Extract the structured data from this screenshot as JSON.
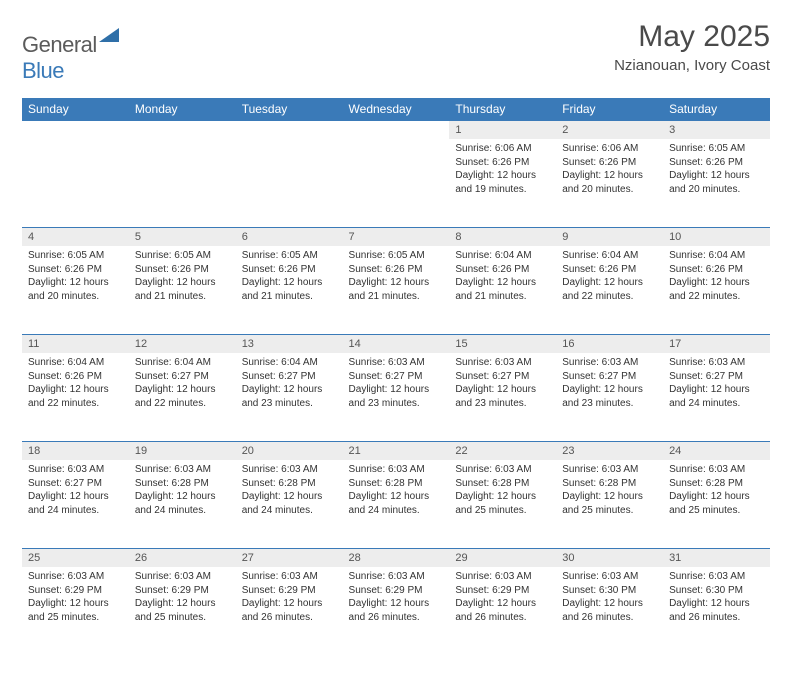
{
  "logo": {
    "general": "General",
    "blue": "Blue"
  },
  "title": "May 2025",
  "subtitle": "Nzianouan, Ivory Coast",
  "colors": {
    "header_bg": "#3a7ab8",
    "header_text": "#ffffff",
    "daynum_bg": "#ededed",
    "text": "#333333",
    "logo_gray": "#5b5b5b",
    "logo_blue": "#3a7ab8"
  },
  "weekdays": [
    "Sunday",
    "Monday",
    "Tuesday",
    "Wednesday",
    "Thursday",
    "Friday",
    "Saturday"
  ],
  "weeks": [
    [
      null,
      null,
      null,
      null,
      {
        "n": "1",
        "sr": "6:06 AM",
        "ss": "6:26 PM",
        "dl": "12 hours and 19 minutes."
      },
      {
        "n": "2",
        "sr": "6:06 AM",
        "ss": "6:26 PM",
        "dl": "12 hours and 20 minutes."
      },
      {
        "n": "3",
        "sr": "6:05 AM",
        "ss": "6:26 PM",
        "dl": "12 hours and 20 minutes."
      }
    ],
    [
      {
        "n": "4",
        "sr": "6:05 AM",
        "ss": "6:26 PM",
        "dl": "12 hours and 20 minutes."
      },
      {
        "n": "5",
        "sr": "6:05 AM",
        "ss": "6:26 PM",
        "dl": "12 hours and 21 minutes."
      },
      {
        "n": "6",
        "sr": "6:05 AM",
        "ss": "6:26 PM",
        "dl": "12 hours and 21 minutes."
      },
      {
        "n": "7",
        "sr": "6:05 AM",
        "ss": "6:26 PM",
        "dl": "12 hours and 21 minutes."
      },
      {
        "n": "8",
        "sr": "6:04 AM",
        "ss": "6:26 PM",
        "dl": "12 hours and 21 minutes."
      },
      {
        "n": "9",
        "sr": "6:04 AM",
        "ss": "6:26 PM",
        "dl": "12 hours and 22 minutes."
      },
      {
        "n": "10",
        "sr": "6:04 AM",
        "ss": "6:26 PM",
        "dl": "12 hours and 22 minutes."
      }
    ],
    [
      {
        "n": "11",
        "sr": "6:04 AM",
        "ss": "6:26 PM",
        "dl": "12 hours and 22 minutes."
      },
      {
        "n": "12",
        "sr": "6:04 AM",
        "ss": "6:27 PM",
        "dl": "12 hours and 22 minutes."
      },
      {
        "n": "13",
        "sr": "6:04 AM",
        "ss": "6:27 PM",
        "dl": "12 hours and 23 minutes."
      },
      {
        "n": "14",
        "sr": "6:03 AM",
        "ss": "6:27 PM",
        "dl": "12 hours and 23 minutes."
      },
      {
        "n": "15",
        "sr": "6:03 AM",
        "ss": "6:27 PM",
        "dl": "12 hours and 23 minutes."
      },
      {
        "n": "16",
        "sr": "6:03 AM",
        "ss": "6:27 PM",
        "dl": "12 hours and 23 minutes."
      },
      {
        "n": "17",
        "sr": "6:03 AM",
        "ss": "6:27 PM",
        "dl": "12 hours and 24 minutes."
      }
    ],
    [
      {
        "n": "18",
        "sr": "6:03 AM",
        "ss": "6:27 PM",
        "dl": "12 hours and 24 minutes."
      },
      {
        "n": "19",
        "sr": "6:03 AM",
        "ss": "6:28 PM",
        "dl": "12 hours and 24 minutes."
      },
      {
        "n": "20",
        "sr": "6:03 AM",
        "ss": "6:28 PM",
        "dl": "12 hours and 24 minutes."
      },
      {
        "n": "21",
        "sr": "6:03 AM",
        "ss": "6:28 PM",
        "dl": "12 hours and 24 minutes."
      },
      {
        "n": "22",
        "sr": "6:03 AM",
        "ss": "6:28 PM",
        "dl": "12 hours and 25 minutes."
      },
      {
        "n": "23",
        "sr": "6:03 AM",
        "ss": "6:28 PM",
        "dl": "12 hours and 25 minutes."
      },
      {
        "n": "24",
        "sr": "6:03 AM",
        "ss": "6:28 PM",
        "dl": "12 hours and 25 minutes."
      }
    ],
    [
      {
        "n": "25",
        "sr": "6:03 AM",
        "ss": "6:29 PM",
        "dl": "12 hours and 25 minutes."
      },
      {
        "n": "26",
        "sr": "6:03 AM",
        "ss": "6:29 PM",
        "dl": "12 hours and 25 minutes."
      },
      {
        "n": "27",
        "sr": "6:03 AM",
        "ss": "6:29 PM",
        "dl": "12 hours and 26 minutes."
      },
      {
        "n": "28",
        "sr": "6:03 AM",
        "ss": "6:29 PM",
        "dl": "12 hours and 26 minutes."
      },
      {
        "n": "29",
        "sr": "6:03 AM",
        "ss": "6:29 PM",
        "dl": "12 hours and 26 minutes."
      },
      {
        "n": "30",
        "sr": "6:03 AM",
        "ss": "6:30 PM",
        "dl": "12 hours and 26 minutes."
      },
      {
        "n": "31",
        "sr": "6:03 AM",
        "ss": "6:30 PM",
        "dl": "12 hours and 26 minutes."
      }
    ]
  ],
  "labels": {
    "sunrise": "Sunrise:",
    "sunset": "Sunset:",
    "daylight": "Daylight:"
  }
}
